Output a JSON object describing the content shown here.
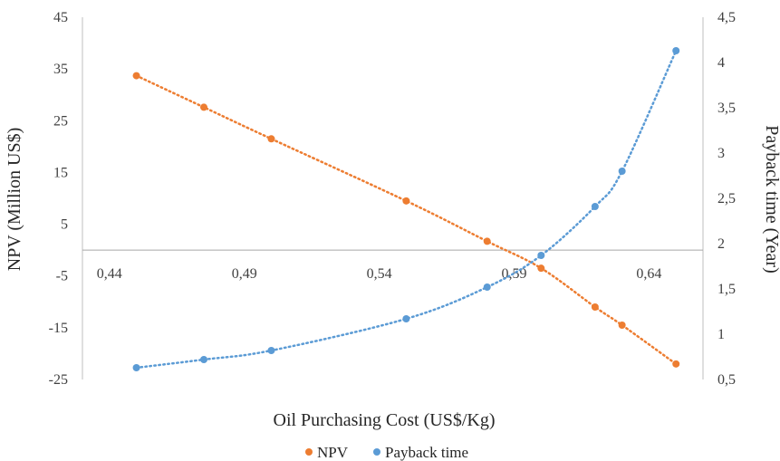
{
  "chart_data": {
    "type": "scatter",
    "xlabel": "Oil Purchasing Cost (US$/Kg)",
    "ylabel_left": "NPV (Million US$)",
    "ylabel_right": "Payback time (Year)",
    "x_ticks": [
      "0,44",
      "0,49",
      "0,54",
      "0,59",
      "0,64"
    ],
    "x_tick_values": [
      0.44,
      0.49,
      0.54,
      0.59,
      0.64
    ],
    "xlim": [
      0.43,
      0.66
    ],
    "y_left_ticks": [
      "45",
      "35",
      "25",
      "15",
      "5",
      "-5",
      "-15",
      "-25"
    ],
    "y_left_tick_values": [
      45,
      35,
      25,
      15,
      5,
      -5,
      -15,
      -25
    ],
    "ylim_left": [
      -25,
      45
    ],
    "y_right_ticks": [
      "4,5",
      "4",
      "3,5",
      "3",
      "2,5",
      "2",
      "1,5",
      "1",
      "0,5"
    ],
    "y_right_tick_values": [
      4.5,
      4,
      3.5,
      3,
      2.5,
      2,
      1.5,
      1,
      0.5
    ],
    "ylim_right": [
      0.5,
      4.5
    ],
    "legend_position": "bottom",
    "grid": false,
    "series": [
      {
        "name": "NPV",
        "axis": "left",
        "color": "#ED7D31",
        "trendline": "dotted",
        "x": [
          0.45,
          0.475,
          0.5,
          0.55,
          0.58,
          0.6,
          0.62,
          0.63,
          0.65
        ],
        "y": [
          33.7,
          27.6,
          21.5,
          9.5,
          1.7,
          -3.5,
          -11.0,
          -14.5,
          -22.0
        ]
      },
      {
        "name": "Payback time",
        "axis": "right",
        "color": "#5B9BD5",
        "trendline": "dotted",
        "x": [
          0.45,
          0.475,
          0.5,
          0.55,
          0.58,
          0.6,
          0.62,
          0.63,
          0.65
        ],
        "y": [
          0.63,
          0.72,
          0.82,
          1.17,
          1.52,
          1.87,
          2.41,
          2.8,
          4.13
        ]
      }
    ]
  }
}
